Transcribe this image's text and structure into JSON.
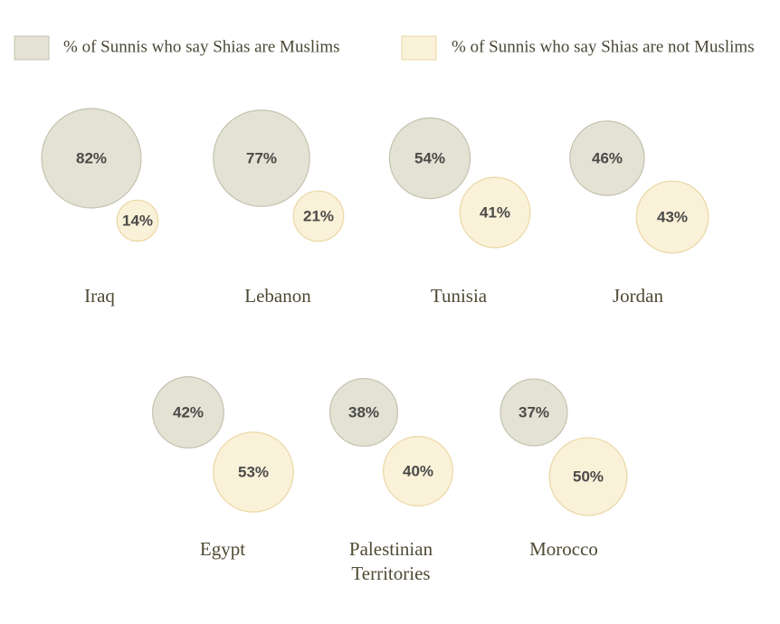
{
  "chart_data": {
    "type": "bubble",
    "categories": [
      "Iraq",
      "Lebanon",
      "Tunisia",
      "Jordan",
      "Egypt",
      "Palestinian Territories",
      "Morocco"
    ],
    "series": [
      {
        "name": "% of Sunnis who say Shias are Muslims",
        "color": "#e3e2d4",
        "values": [
          82,
          77,
          54,
          46,
          42,
          38,
          37
        ],
        "value_labels": [
          "82%",
          "77%",
          "54%",
          "46%",
          "42%",
          "38%",
          "37%"
        ]
      },
      {
        "name": "% of Sunnis who say Shias are not Muslims",
        "color": "#faf1d9",
        "values": [
          14,
          21,
          41,
          43,
          53,
          40,
          50
        ],
        "value_labels": [
          "14%",
          "21%",
          "41%",
          "43%",
          "53%",
          "40%",
          "50%"
        ]
      }
    ]
  }
}
